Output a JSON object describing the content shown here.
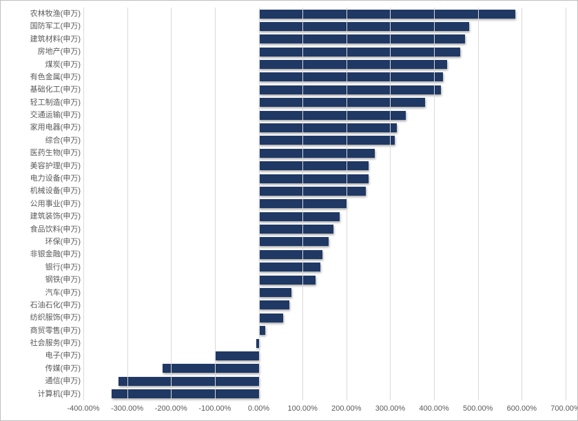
{
  "chart": {
    "type": "bar-horizontal",
    "background_color": "#ffffff",
    "border_color": "#bfbfbf",
    "grid_color": "#d9d9d9",
    "bar_color": "#1f3864",
    "bar_shadow": true,
    "label_color": "#595959",
    "label_fontsize": 11,
    "x_axis": {
      "min": -400,
      "max": 700,
      "tick_step": 100,
      "ticks": [
        -400,
        -300,
        -200,
        -100,
        0,
        100,
        200,
        300,
        400,
        500,
        600,
        700
      ],
      "tick_labels": [
        "-400.00%",
        "-300.00%",
        "-200.00%",
        "-100.00%",
        "0.00%",
        "100.00%",
        "200.00%",
        "300.00%",
        "400.00%",
        "500.00%",
        "600.00%",
        "700.00%"
      ]
    },
    "categories": [
      {
        "label": "农林牧渔(申万)",
        "value": 585
      },
      {
        "label": "国防军工(申万)",
        "value": 480
      },
      {
        "label": "建筑材料(申万)",
        "value": 470
      },
      {
        "label": "房地产(申万)",
        "value": 460
      },
      {
        "label": "煤炭(申万)",
        "value": 430
      },
      {
        "label": "有色金属(申万)",
        "value": 420
      },
      {
        "label": "基础化工(申万)",
        "value": 415
      },
      {
        "label": "轻工制造(申万)",
        "value": 380
      },
      {
        "label": "交通运输(申万)",
        "value": 335
      },
      {
        "label": "家用电器(申万)",
        "value": 315
      },
      {
        "label": "综合(申万)",
        "value": 310
      },
      {
        "label": "医药生物(申万)",
        "value": 265
      },
      {
        "label": "美容护理(申万)",
        "value": 250
      },
      {
        "label": "电力设备(申万)",
        "value": 250
      },
      {
        "label": "机械设备(申万)",
        "value": 245
      },
      {
        "label": "公用事业(申万)",
        "value": 200
      },
      {
        "label": "建筑装饰(申万)",
        "value": 185
      },
      {
        "label": "食品饮料(申万)",
        "value": 170
      },
      {
        "label": "环保(申万)",
        "value": 160
      },
      {
        "label": "非银金融(申万)",
        "value": 145
      },
      {
        "label": "银行(申万)",
        "value": 140
      },
      {
        "label": "钢铁(申万)",
        "value": 130
      },
      {
        "label": "汽车(申万)",
        "value": 75
      },
      {
        "label": "石油石化(申万)",
        "value": 70
      },
      {
        "label": "纺织服饰(申万)",
        "value": 55
      },
      {
        "label": "商贸零售(申万)",
        "value": 15
      },
      {
        "label": "社会服务(申万)",
        "value": -5
      },
      {
        "label": "电子(申万)",
        "value": -100
      },
      {
        "label": "传媒(申万)",
        "value": -220
      },
      {
        "label": "通信(申万)",
        "value": -320
      },
      {
        "label": "计算机(申万)",
        "value": -335
      }
    ]
  }
}
